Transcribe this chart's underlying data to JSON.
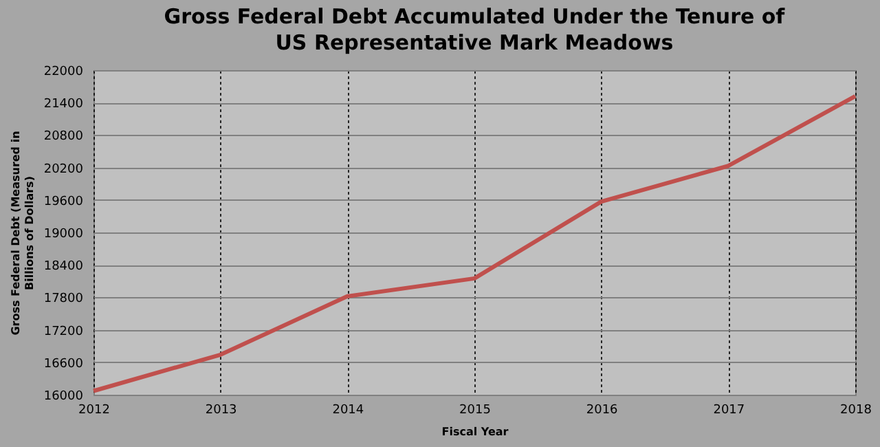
{
  "chart_data": {
    "type": "line",
    "title": "Gross Federal Debt Accumulated Under the Tenure of US Representative Mark Meadows",
    "xlabel": "Fiscal Year",
    "ylabel": "Gross Federal Debt (Measured in Billions of Dollars)",
    "x": [
      2012,
      2013,
      2014,
      2015,
      2016,
      2017,
      2018
    ],
    "series": [
      {
        "color": "#c0504d",
        "values": [
          16070,
          16740,
          17820,
          18150,
          19570,
          20230,
          21520
        ]
      }
    ],
    "xlim": [
      2012,
      2018
    ],
    "xticks": [
      2012,
      2013,
      2014,
      2015,
      2016,
      2017,
      2018
    ],
    "ylim": [
      16000,
      22000
    ],
    "yticks": [
      16000,
      16600,
      17200,
      17800,
      18400,
      19000,
      19600,
      20200,
      20800,
      21400,
      22000
    ],
    "grid": true,
    "marker": "none",
    "line_style": "solid"
  }
}
